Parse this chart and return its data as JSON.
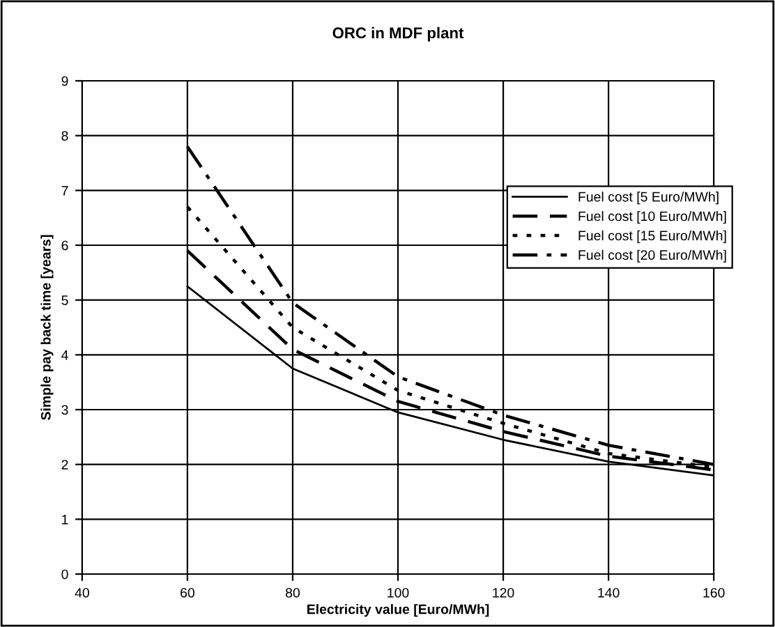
{
  "chart_data": {
    "type": "line",
    "title": "ORC in MDF plant",
    "xlabel": "Electricity value [Euro/MWh]",
    "ylabel": "Simple pay back time [years]",
    "x": [
      60,
      80,
      100,
      120,
      140,
      160
    ],
    "series": [
      {
        "name": "Fuel cost [5 Euro/MWh]",
        "color": "#000000",
        "line_style": "solid",
        "values": [
          5.25,
          3.75,
          2.95,
          2.45,
          2.05,
          1.8
        ]
      },
      {
        "name": "Fuel cost [10 Euro/MWh]",
        "color": "#000000",
        "line_style": "dashed",
        "values": [
          5.9,
          4.1,
          3.15,
          2.6,
          2.15,
          1.9
        ]
      },
      {
        "name": "Fuel cost [15 Euro/MWh]",
        "color": "#000000",
        "line_style": "dotted",
        "values": [
          6.7,
          4.5,
          3.35,
          2.75,
          2.2,
          1.95
        ]
      },
      {
        "name": "Fuel cost [20 Euro/MWh]",
        "color": "#000000",
        "line_style": "dashdot",
        "values": [
          7.8,
          4.95,
          3.6,
          2.9,
          2.35,
          2.0
        ]
      }
    ],
    "xlim": [
      40,
      160
    ],
    "xticks": [
      40,
      60,
      80,
      100,
      120,
      140,
      160
    ],
    "ylim": [
      0,
      9
    ],
    "yticks": [
      0,
      1,
      2,
      3,
      4,
      5,
      6,
      7,
      8,
      9
    ],
    "grid": true,
    "legend": "top right",
    "marker": "none"
  }
}
